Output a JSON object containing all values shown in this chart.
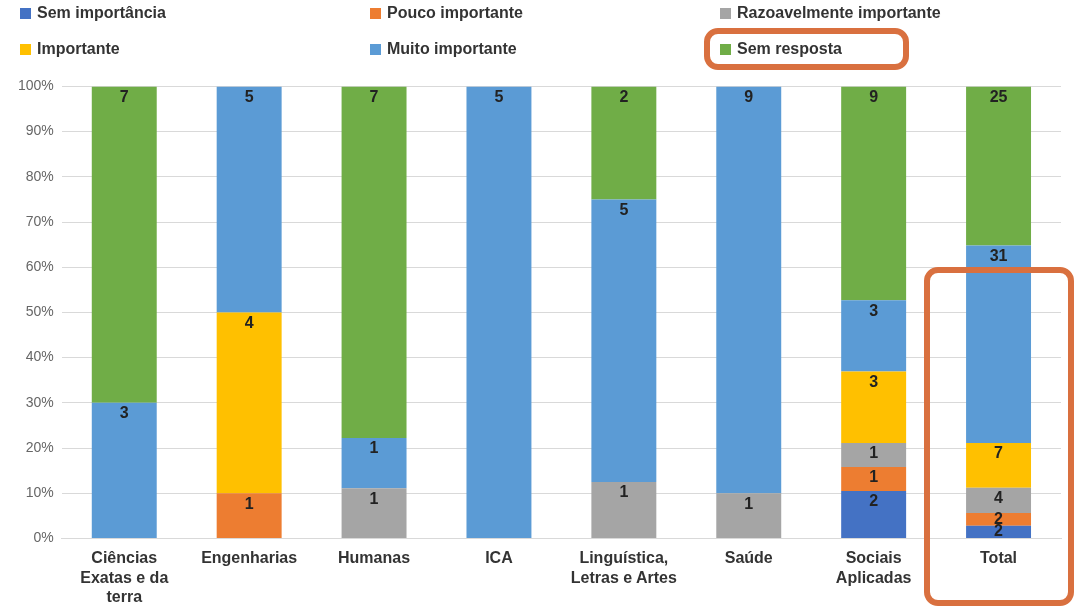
{
  "chart_data": {
    "type": "bar",
    "stacked": true,
    "categories": [
      "Ciências Exatas e da terra",
      "Engenharias",
      "Humanas",
      "ICA",
      "Linguística, Letras e Artes",
      "Saúde",
      "Sociais Aplicadas",
      "Total"
    ],
    "series": [
      {
        "name": "Sem importância",
        "color": "#4472c4",
        "values": [
          null,
          null,
          null,
          null,
          null,
          null,
          10.5,
          2.8
        ]
      },
      {
        "name": "Pouco importante",
        "color": "#ed7d31",
        "values": [
          null,
          10,
          null,
          null,
          null,
          null,
          5.3,
          2.8
        ]
      },
      {
        "name": "Razoavelmente importante",
        "color": "#a5a5a5",
        "values": [
          null,
          null,
          11.1,
          null,
          12.5,
          10,
          5.3,
          5.6
        ]
      },
      {
        "name": "Importante",
        "color": "#ffc000",
        "values": [
          null,
          40,
          null,
          null,
          null,
          null,
          15.8,
          9.9
        ]
      },
      {
        "name": "Muito importante",
        "color": "#5b9bd5",
        "values": [
          30,
          50,
          11.1,
          100,
          62.5,
          90,
          15.8,
          43.7
        ]
      },
      {
        "name": "Sem resposta",
        "color": "#70ad47",
        "values": [
          70,
          null,
          77.8,
          null,
          25,
          null,
          47.3,
          35.2
        ]
      }
    ],
    "annotations": [
      {
        "text": "3",
        "x": "Ciências Exatas e da terra",
        "y": 30
      },
      {
        "text": "7",
        "x": "Ciências Exatas e da terra",
        "y": 100
      },
      {
        "text": "1",
        "x": "Engenharias",
        "y": 10
      },
      {
        "text": "4",
        "x": "Engenharias",
        "y": 50
      },
      {
        "text": "5",
        "x": "Engenharias",
        "y": 100
      },
      {
        "text": "1",
        "x": "Humanas",
        "y": 11.1
      },
      {
        "text": "1",
        "x": "Humanas",
        "y": 22.2
      },
      {
        "text": "7",
        "x": "Humanas",
        "y": 100
      },
      {
        "text": "5",
        "x": "ICA",
        "y": 100
      },
      {
        "text": "1",
        "x": "Linguística, Letras e Artes",
        "y": 12.5
      },
      {
        "text": "5",
        "x": "Linguística, Letras e Artes",
        "y": 75
      },
      {
        "text": "2",
        "x": "Linguística, Letras e Artes",
        "y": 100
      },
      {
        "text": "1",
        "x": "Saúde",
        "y": 10
      },
      {
        "text": "9",
        "x": "Saúde",
        "y": 100
      },
      {
        "text": "2",
        "x": "Sociais Aplicadas",
        "y": 10.5
      },
      {
        "text": "1",
        "x": "Sociais Aplicadas",
        "y": 15.8
      },
      {
        "text": "1",
        "x": "Sociais Aplicadas",
        "y": 21.1
      },
      {
        "text": "3",
        "x": "Sociais Aplicadas",
        "y": 36.9
      },
      {
        "text": "3",
        "x": "Sociais Aplicadas",
        "y": 52.7
      },
      {
        "text": "9",
        "x": "Sociais Aplicadas",
        "y": 100
      },
      {
        "text": "2",
        "x": "Total",
        "y": 2.8
      },
      {
        "text": "2",
        "x": "Total",
        "y": 5.6
      },
      {
        "text": "4",
        "x": "Total",
        "y": 11.2
      },
      {
        "text": "7",
        "x": "Total",
        "y": 21.1
      },
      {
        "text": "31",
        "x": "Total",
        "y": 64.8
      },
      {
        "text": "25",
        "x": "Total",
        "y": 100
      }
    ],
    "ylim": [
      0,
      100
    ],
    "yticks": [
      {
        "value": 0,
        "label": "0%"
      },
      {
        "value": 10,
        "label": "10%"
      },
      {
        "value": 20,
        "label": "20%"
      },
      {
        "value": 30,
        "label": "30%"
      },
      {
        "value": 40,
        "label": "40%"
      },
      {
        "value": 50,
        "label": "50%"
      },
      {
        "value": 60,
        "label": "60%"
      },
      {
        "value": 70,
        "label": "70%"
      },
      {
        "value": 80,
        "label": "80%"
      },
      {
        "value": 90,
        "label": "90%"
      },
      {
        "value": 100,
        "label": "100%"
      }
    ],
    "grid": "y",
    "legend": "top"
  }
}
